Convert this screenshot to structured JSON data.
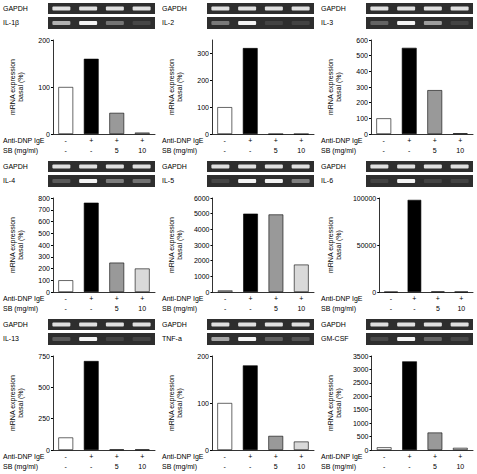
{
  "chart_data": [
    {
      "type": "bar",
      "annotations": [
        "GAPDH",
        "IL-1β"
      ],
      "ylabel": "mRNA expression basal (%)",
      "condition_rows": [
        {
          "label": "Anti-DNP IgE",
          "values": [
            "-",
            "+",
            "+",
            "+"
          ]
        },
        {
          "label": "SB (mg/ml)",
          "values": [
            "-",
            "-",
            "5",
            "10"
          ]
        }
      ],
      "values": [
        100,
        160,
        45,
        3
      ],
      "colors": [
        "#ffffff",
        "#000000",
        "#999999",
        "#d9d9d9"
      ],
      "ylim": [
        0,
        200
      ],
      "yticks": [
        0,
        100,
        200
      ],
      "grid": false
    },
    {
      "type": "bar",
      "annotations": [
        "GAPDH",
        "IL-2"
      ],
      "ylabel": "mRNA expression basal (%)",
      "condition_rows": [
        {
          "label": "Anti-DNP IgE",
          "values": [
            "-",
            "+",
            "+",
            "+"
          ]
        },
        {
          "label": "SB (mg/ml)",
          "values": [
            "-",
            "-",
            "5",
            "10"
          ]
        }
      ],
      "values": [
        100,
        320,
        0,
        0
      ],
      "colors": [
        "#ffffff",
        "#000000",
        "#999999",
        "#d9d9d9"
      ],
      "ylim": [
        0,
        350
      ],
      "yticks": [
        0,
        100,
        200,
        300
      ],
      "grid": false
    },
    {
      "type": "bar",
      "annotations": [
        "GAPDH",
        "IL-3"
      ],
      "ylabel": "mRNA expression basal (%)",
      "condition_rows": [
        {
          "label": "Anti-DNP IgE",
          "values": [
            "-",
            "+",
            "+",
            "+"
          ]
        },
        {
          "label": "SB (mg/ml)",
          "values": [
            "-",
            "-",
            "5",
            "10"
          ]
        }
      ],
      "values": [
        100,
        550,
        280,
        5
      ],
      "colors": [
        "#ffffff",
        "#000000",
        "#999999",
        "#d9d9d9"
      ],
      "ylim": [
        0,
        600
      ],
      "yticks": [
        0,
        100,
        200,
        300,
        400,
        500,
        600
      ],
      "grid": false
    },
    {
      "type": "bar",
      "annotations": [
        "GAPDH",
        "IL-4"
      ],
      "ylabel": "mRNA expression basal (%)",
      "condition_rows": [
        {
          "label": "Anti-DNP IgE",
          "values": [
            "-",
            "+",
            "+",
            "+"
          ]
        },
        {
          "label": "SB (mg/ml)",
          "values": [
            "-",
            "-",
            "5",
            "10"
          ]
        }
      ],
      "values": [
        100,
        760,
        250,
        200
      ],
      "colors": [
        "#ffffff",
        "#000000",
        "#999999",
        "#d9d9d9"
      ],
      "ylim": [
        0,
        800
      ],
      "yticks": [
        0,
        100,
        200,
        300,
        400,
        500,
        600,
        700,
        800
      ],
      "grid": false
    },
    {
      "type": "bar",
      "annotations": [
        "GAPDH",
        "IL-5"
      ],
      "ylabel": "mRNA expression basal (%)",
      "condition_rows": [
        {
          "label": "Anti-DNP IgE",
          "values": [
            "-",
            "+",
            "+",
            "+"
          ]
        },
        {
          "label": "SB (mg/ml)",
          "values": [
            "-",
            "-",
            "5",
            "10"
          ]
        }
      ],
      "values": [
        100,
        5000,
        4950,
        1750
      ],
      "colors": [
        "#ffffff",
        "#000000",
        "#999999",
        "#d9d9d9"
      ],
      "ylim": [
        0,
        6000
      ],
      "yticks": [
        0,
        1000,
        2000,
        3000,
        4000,
        5000,
        6000
      ],
      "grid": false
    },
    {
      "type": "bar",
      "annotations": [
        "GAPDH",
        "IL-6"
      ],
      "ylabel": "mRNA expression basal (%)",
      "condition_rows": [
        {
          "label": "Anti-DNP IgE",
          "values": [
            "-",
            "+",
            "+",
            "+"
          ]
        },
        {
          "label": "SB (mg/ml)",
          "values": [
            "-",
            "-",
            "5",
            "10"
          ]
        }
      ],
      "values": [
        100,
        98000,
        500,
        300
      ],
      "colors": [
        "#ffffff",
        "#000000",
        "#999999",
        "#d9d9d9"
      ],
      "ylim": [
        0,
        100000
      ],
      "yticks": [
        0,
        50000,
        100000
      ],
      "grid": false
    },
    {
      "type": "bar",
      "annotations": [
        "GAPDH",
        "IL-13"
      ],
      "ylabel": "mRNA expression basal (%)",
      "condition_rows": [
        {
          "label": "Anti-DNP IgE",
          "values": [
            "-",
            "+",
            "+",
            "+"
          ]
        },
        {
          "label": "SB (mg/ml)",
          "values": [
            "-",
            "-",
            "5",
            "10"
          ]
        }
      ],
      "values": [
        100,
        710,
        5,
        5
      ],
      "colors": [
        "#ffffff",
        "#000000",
        "#999999",
        "#d9d9d9"
      ],
      "ylim": [
        0,
        750
      ],
      "yticks": [
        0,
        250,
        500,
        750
      ],
      "grid": false
    },
    {
      "type": "bar",
      "annotations": [
        "GAPDH",
        "TNF-a"
      ],
      "ylabel": "mRNA expression basal (%)",
      "condition_rows": [
        {
          "label": "Anti-DNP IgE",
          "values": [
            "-",
            "+",
            "+",
            "+"
          ]
        },
        {
          "label": "SB (mg/ml)",
          "values": [
            "-",
            "-",
            "5",
            "10"
          ]
        }
      ],
      "values": [
        100,
        180,
        30,
        18
      ],
      "colors": [
        "#ffffff",
        "#000000",
        "#999999",
        "#d9d9d9"
      ],
      "ylim": [
        0,
        200
      ],
      "yticks": [
        0,
        100,
        200
      ],
      "grid": false
    },
    {
      "type": "bar",
      "annotations": [
        "GAPDH",
        "GM-CSF"
      ],
      "ylabel": "mRNA expression basal (%)",
      "condition_rows": [
        {
          "label": "Anti-DNP IgE",
          "values": [
            "-",
            "+",
            "+",
            "+"
          ]
        },
        {
          "label": "SB (mg/ml)",
          "values": [
            "-",
            "-",
            "5",
            "10"
          ]
        }
      ],
      "values": [
        100,
        3300,
        650,
        80
      ],
      "colors": [
        "#ffffff",
        "#000000",
        "#999999",
        "#d9d9d9"
      ],
      "ylim": [
        0,
        3500
      ],
      "yticks": [
        0,
        500,
        1000,
        1500,
        2000,
        2500,
        3000,
        3500
      ],
      "grid": false
    }
  ]
}
